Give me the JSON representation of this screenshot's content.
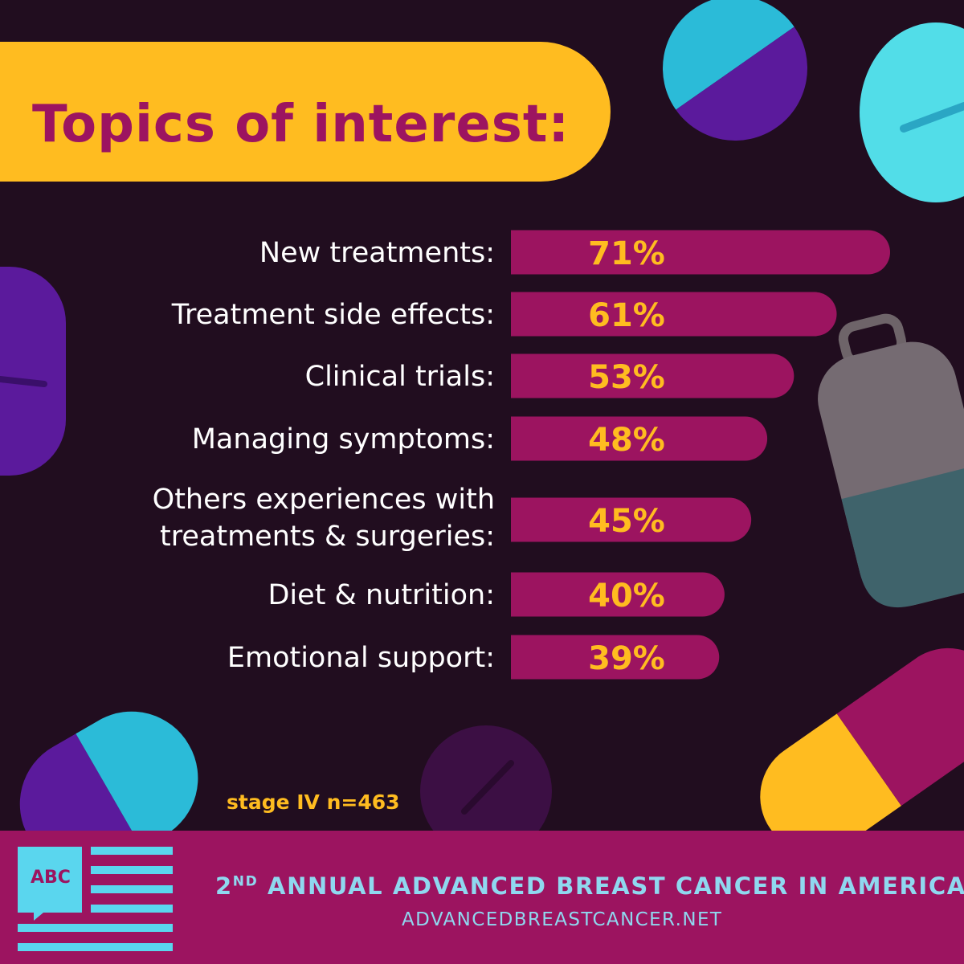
{
  "title": "Topics of interest:",
  "note": "stage IV n=463",
  "chart_data": {
    "type": "bar",
    "orientation": "horizontal",
    "categories": [
      "New treatments:",
      "Treatment side effects:",
      "Clinical trials:",
      "Managing symptoms:",
      "Others experiences with treatments & surgeries:",
      "Diet & nutrition:",
      "Emotional support:"
    ],
    "values": [
      71,
      61,
      53,
      48,
      45,
      40,
      39
    ],
    "value_labels": [
      "71%",
      "61%",
      "53%",
      "48%",
      "45%",
      "40%",
      "39%"
    ],
    "unit": "%",
    "grid": false,
    "legend": "none"
  },
  "footer": {
    "logo_text": "ABC",
    "headline_ordinal": "2",
    "headline_suffix": "ND",
    "headline_rest": "ANNUAL ADVANCED BREAST CANCER IN AMERICA",
    "url": "ADVANCEDBREASTCANCER.NET"
  },
  "colors": {
    "background": "#210d1f",
    "bar": "#9c1460",
    "title_banner": "#ffbc20",
    "title_text": "#9c1460",
    "value_text": "#ffbc20",
    "footer_bg": "#9c1460",
    "footer_text": "#8fd8ef",
    "logo": "#5ad6ee"
  }
}
